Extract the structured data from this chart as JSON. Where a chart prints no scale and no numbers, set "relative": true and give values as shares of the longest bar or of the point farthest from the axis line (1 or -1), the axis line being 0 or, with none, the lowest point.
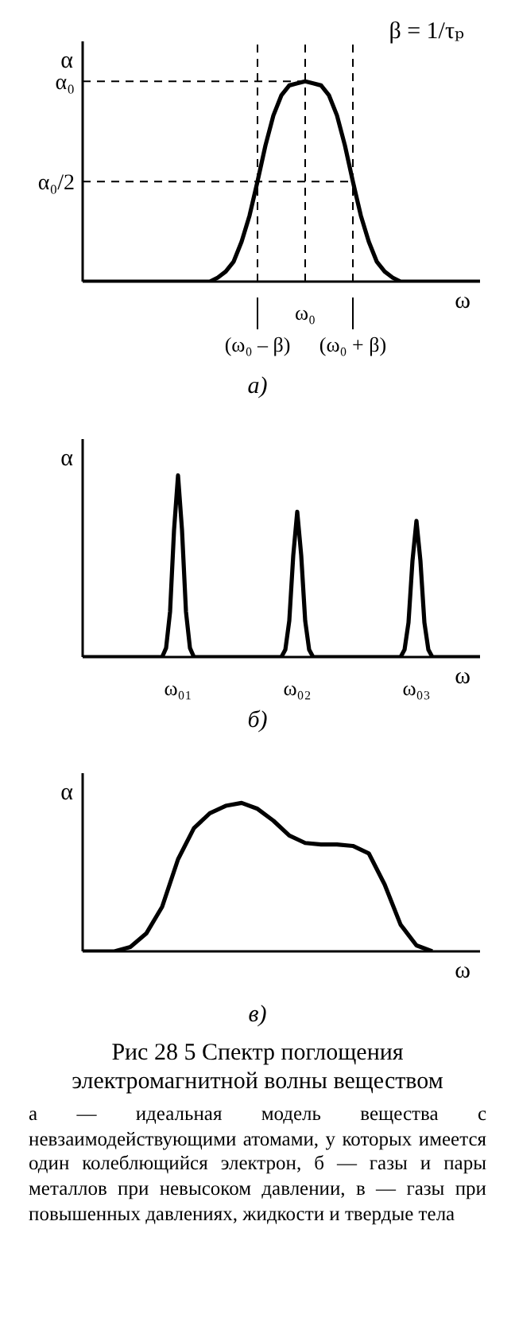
{
  "chart_data": [
    {
      "type": "line",
      "subtitle": "а)",
      "xlabel": "ω",
      "ylabel": "α",
      "relative": true,
      "categories": [
        null,
        null,
        null,
        null,
        null,
        null,
        null,
        null,
        null,
        null,
        null,
        null,
        null,
        null,
        null,
        null,
        null,
        null,
        null,
        null,
        null,
        null,
        "(ω₀ – β)",
        null,
        null,
        null,
        null,
        null,
        "ω₀",
        null,
        null,
        null,
        null,
        null,
        "(ω₀ + β)",
        null,
        null,
        null,
        null,
        null,
        null,
        null,
        null,
        null,
        null,
        null,
        null,
        null,
        null,
        null,
        null
      ],
      "series": [
        {
          "color": "#000000",
          "values": [
            0,
            0,
            0,
            0,
            0,
            0,
            0,
            0,
            0,
            0,
            0,
            0,
            0,
            0,
            0,
            0,
            0,
            0.02,
            0.05,
            0.1,
            0.2,
            0.33,
            0.5,
            0.68,
            0.83,
            0.93,
            0.98,
            0.99,
            1,
            0.99,
            0.98,
            0.93,
            0.83,
            0.68,
            0.5,
            0.33,
            0.2,
            0.1,
            0.05,
            0.02,
            0,
            0,
            0,
            0,
            0,
            0,
            0,
            0,
            0,
            0,
            0
          ]
        }
      ],
      "ref_lines": [
        {
          "axis": "y",
          "value": 1,
          "label": "α₀",
          "color": "#000000",
          "line_style": "dashed"
        },
        {
          "axis": "y",
          "value": 0.5,
          "label": "α₀/2",
          "color": "#000000",
          "line_style": "dashed"
        },
        {
          "axis": "x",
          "value": "(ω₀ – β)",
          "color": "#000000",
          "line_style": "dashed"
        },
        {
          "axis": "x",
          "value": "ω₀",
          "color": "#000000",
          "line_style": "dashed"
        },
        {
          "axis": "x",
          "value": "(ω₀ + β)",
          "color": "#000000",
          "line_style": "dashed"
        }
      ],
      "annotations": [
        "β = 1/τₚ"
      ]
    },
    {
      "type": "line",
      "subtitle": "б)",
      "xlabel": "ω",
      "ylabel": "α",
      "relative": true,
      "categories": [
        null,
        null,
        null,
        null,
        null,
        null,
        null,
        null,
        null,
        null,
        null,
        null,
        null,
        null,
        null,
        null,
        null,
        null,
        null,
        null,
        null,
        null,
        null,
        null,
        "ω₀₁",
        null,
        null,
        null,
        null,
        null,
        null,
        null,
        null,
        null,
        null,
        null,
        null,
        null,
        null,
        null,
        null,
        null,
        null,
        null,
        null,
        null,
        null,
        null,
        null,
        null,
        null,
        null,
        null,
        null,
        "ω₀₂",
        null,
        null,
        null,
        null,
        null,
        null,
        null,
        null,
        null,
        null,
        null,
        null,
        null,
        null,
        null,
        null,
        null,
        null,
        null,
        null,
        null,
        null,
        null,
        null,
        null,
        null,
        null,
        null,
        null,
        "ω₀₃",
        null,
        null,
        null,
        null,
        null,
        null,
        null,
        null,
        null,
        null,
        null,
        null,
        null,
        null,
        null,
        null
      ],
      "series": [
        {
          "color": "#000000",
          "values": [
            0,
            0,
            0,
            0,
            0,
            0,
            0,
            0,
            0,
            0,
            0,
            0,
            0,
            0,
            0,
            0,
            0,
            0,
            0,
            0,
            0,
            0.05,
            0.25,
            0.7,
            1,
            0.7,
            0.25,
            0.05,
            0,
            0,
            0,
            0,
            0,
            0,
            0,
            0,
            0,
            0,
            0,
            0,
            0,
            0,
            0,
            0,
            0,
            0,
            0,
            0,
            0,
            0,
            0,
            0.04,
            0.2,
            0.56,
            0.8,
            0.56,
            0.2,
            0.04,
            0,
            0,
            0,
            0,
            0,
            0,
            0,
            0,
            0,
            0,
            0,
            0,
            0,
            0,
            0,
            0,
            0,
            0,
            0,
            0,
            0,
            0,
            0,
            0.04,
            0.19,
            0.53,
            0.75,
            0.53,
            0.19,
            0.04,
            0,
            0,
            0,
            0,
            0,
            0,
            0,
            0,
            0,
            0,
            0,
            0,
            0
          ]
        }
      ]
    },
    {
      "type": "line",
      "subtitle": "в)",
      "xlabel": "ω",
      "ylabel": "α",
      "relative": true,
      "categories": [
        null,
        null,
        null,
        null,
        null,
        null,
        null,
        null,
        null,
        null,
        null,
        null,
        null,
        null,
        null,
        null,
        null,
        null,
        null,
        null,
        null,
        null,
        null,
        null,
        null,
        null
      ],
      "series": [
        {
          "color": "#000000",
          "values": [
            0,
            0,
            0,
            0.03,
            0.12,
            0.3,
            0.62,
            0.83,
            0.93,
            0.98,
            1,
            0.96,
            0.88,
            0.78,
            0.73,
            0.72,
            0.72,
            0.71,
            0.66,
            0.45,
            0.18,
            0.04,
            0,
            null,
            null,
            null
          ]
        }
      ]
    },
    {
      "type": "other",
      "title": "Рис 28 5 Спектр поглощения электромагнитной волны веществом",
      "annotations": [
        "а — идеальная модель вещества с невзаимодействующими атомами, у которых имеется один колеблющийся электрон, б — газы и пары металлов при невысоком давлении, в — газы при повышенных давлениях, жидкости и твердые тела"
      ]
    }
  ]
}
